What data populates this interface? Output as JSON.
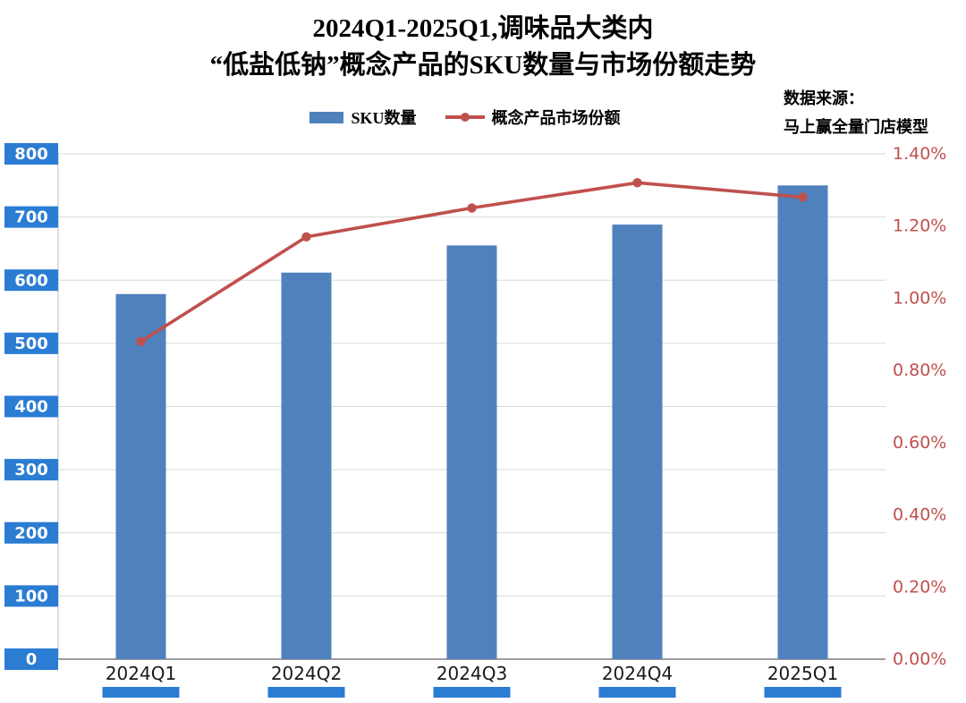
{
  "chart_data": {
    "type": "combo-bar-line",
    "title_lines": [
      "2024Q1-2025Q1,调味品大类内",
      "“低盐低钠”概念产品的SKU数量与市场份额走势"
    ],
    "source_lines": [
      "数据来源：",
      "马上赢全量门店模型"
    ],
    "categories": [
      "2024Q1",
      "2024Q2",
      "2024Q3",
      "2024Q4",
      "2025Q1"
    ],
    "series": [
      {
        "name": "SKU数量",
        "type": "bar",
        "axis": "left",
        "color": "#4F81BD",
        "values": [
          578,
          612,
          655,
          688,
          750
        ]
      },
      {
        "name": "概念产品市场份额",
        "type": "line",
        "axis": "right",
        "color": "#C0504D",
        "values": [
          0.88,
          1.17,
          1.25,
          1.32,
          1.28
        ]
      }
    ],
    "left_axis": {
      "min": 0,
      "max": 800,
      "step": 100,
      "tick_labels_top_to_bottom": [
        "800",
        "700",
        "600",
        "500",
        "400",
        "300",
        "200",
        "100",
        "0"
      ],
      "label_bg": "#2B7CD3",
      "label_color": "#FFFFFF"
    },
    "right_axis": {
      "min": 0,
      "max": 1.4,
      "step": 0.2,
      "tick_labels_top_to_bottom": [
        "1.40%",
        "1.20%",
        "1.00%",
        "0.80%",
        "0.60%",
        "0.40%",
        "0.20%",
        "0.00%"
      ],
      "label_color": "#C0504D"
    },
    "grid": true,
    "legend_position": "top",
    "colors": {
      "gridline": "#D9D9D9",
      "axis_line": "#7F7F7F",
      "x_label": "#1A1A1A",
      "x_label_strip": "#2B7CD3"
    }
  }
}
